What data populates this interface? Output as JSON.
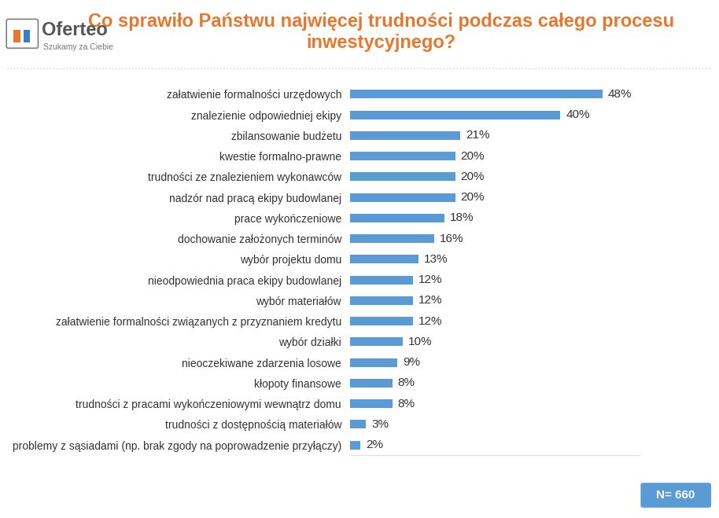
{
  "chart_data": {
    "type": "bar",
    "orientation": "horizontal",
    "title": "Co sprawiło Państwu najwięcej trudności podczas całego procesu inwestycyjnego?",
    "categories": [
      "załatwienie formalności urzędowych",
      "znalezienie odpowiedniej ekipy",
      "zbilansowanie budżetu",
      "kwestie formalno-prawne",
      "trudności ze znalezieniem wykonawców",
      "nadzór nad pracą ekipy budowlanej",
      "prace wykończeniowe",
      "dochowanie założonych terminów",
      "wybór projektu domu",
      "nieodpowiednia praca ekipy budowlanej",
      "wybór materiałów",
      "załatwienie formalności związanych z przyznaniem kredytu",
      "wybór działki",
      "nieoczekiwane zdarzenia losowe",
      "kłopoty finansowe",
      "trudności z pracami wykończeniowymi wewnątrz domu",
      "trudności z dostępnością materiałów",
      "problemy z sąsiadami (np. brak zgody na poprowadzenie przyłączy)"
    ],
    "values": [
      48,
      40,
      21,
      20,
      20,
      20,
      18,
      16,
      13,
      12,
      12,
      12,
      10,
      9,
      8,
      8,
      3,
      2
    ],
    "value_labels": [
      "48%",
      "40%",
      "21%",
      "20%",
      "20%",
      "20%",
      "18%",
      "16%",
      "13%",
      "12%",
      "12%",
      "12%",
      "10%",
      "9%",
      "8%",
      "8%",
      "3%",
      "2%"
    ],
    "color": "#5b9bd5",
    "xlim": [
      0,
      55
    ],
    "xticks": [],
    "tick_labels": "y",
    "data_labels": true,
    "grid": false,
    "annotations": [
      "Oferteo",
      "Szukamy za Ciebie",
      "N= 660"
    ]
  }
}
